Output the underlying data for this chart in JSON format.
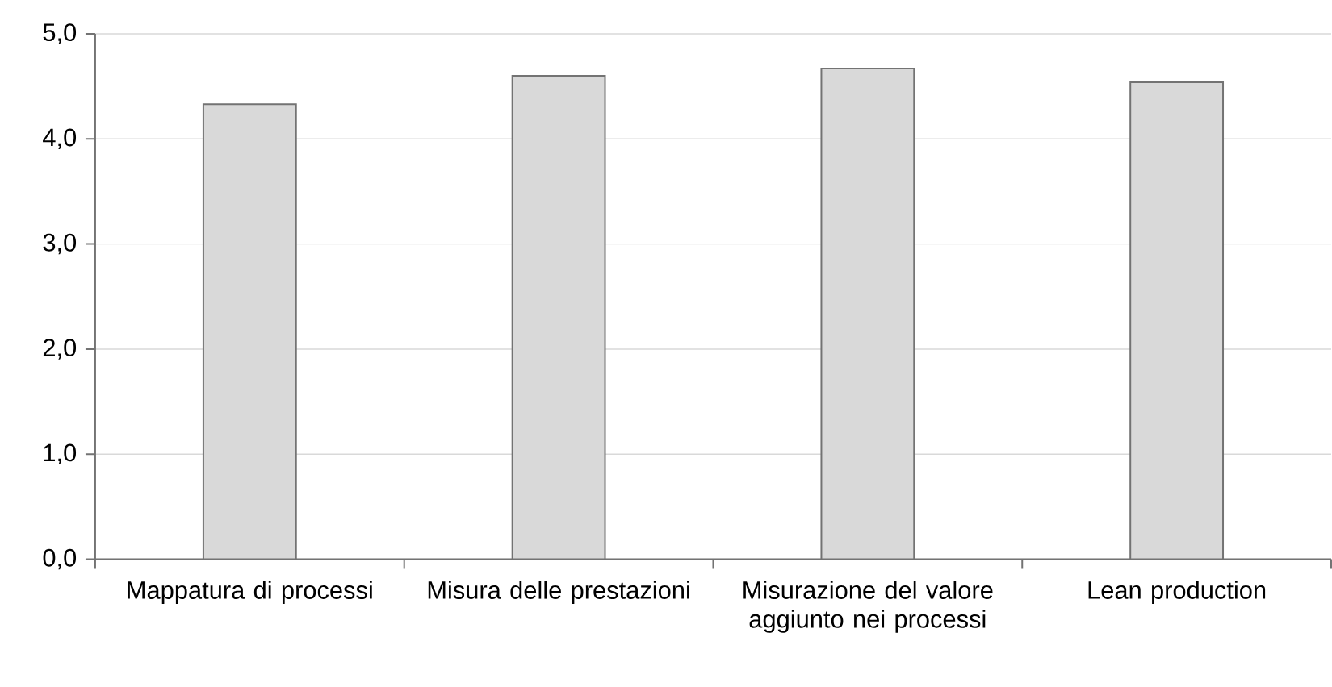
{
  "chart_data": {
    "type": "bar",
    "categories": [
      "Mappatura di processi",
      "Misura delle prestazioni",
      "Misurazione del valore aggiunto nei processi",
      "Lean production"
    ],
    "values": [
      4.33,
      4.6,
      4.67,
      4.54
    ],
    "color": "#d9d9d9",
    "ylim": [
      0,
      5
    ],
    "yticks": [
      {
        "value": 0,
        "label": "0,0"
      },
      {
        "value": 1,
        "label": "1,0"
      },
      {
        "value": 2,
        "label": "2,0"
      },
      {
        "value": 3,
        "label": "3,0"
      },
      {
        "value": 4,
        "label": "4,0"
      },
      {
        "value": 5,
        "label": "5,0"
      }
    ],
    "grid": "y"
  }
}
